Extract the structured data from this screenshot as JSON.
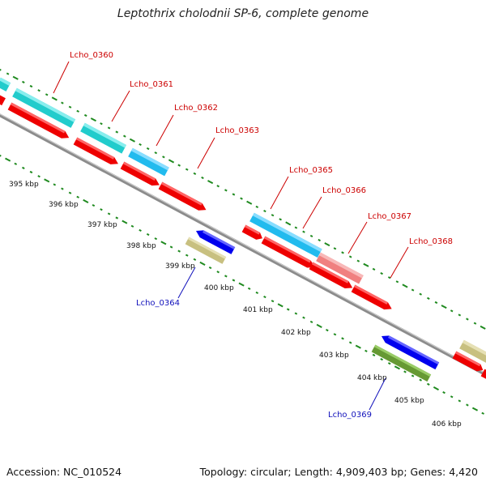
{
  "title": "Leptothrix cholodnii SP-6, complete genome",
  "accession": "Accession: NC_010524",
  "topology": "Topology: circular; Length: 4,909,403 bp; Genes: 4,420",
  "colors": {
    "backbone": "#8c8c8c",
    "tick": "#1f8a1f",
    "label_red": "#cc0000",
    "label_blue": "#1010bb",
    "cyan": "#22cccc",
    "skyblue": "#22bbee",
    "red": "#ee0000",
    "blue": "#0000ee",
    "khaki": "#c8c080",
    "pink": "#f08080",
    "olive": "#669933"
  },
  "kbp_labels": [
    "395 kbp",
    "396 kbp",
    "397 kbp",
    "398 kbp",
    "399 kbp",
    "400 kbp",
    "401 kbp",
    "402 kbp",
    "403 kbp",
    "404 kbp",
    "405 kbp",
    "406 kbp"
  ],
  "gene_labels": [
    {
      "id": "Lcho_0360",
      "color": "red"
    },
    {
      "id": "Lcho_0361",
      "color": "red"
    },
    {
      "id": "Lcho_0362",
      "color": "red"
    },
    {
      "id": "Lcho_0363",
      "color": "red"
    },
    {
      "id": "Lcho_0365",
      "color": "red"
    },
    {
      "id": "Lcho_0366",
      "color": "red"
    },
    {
      "id": "Lcho_0367",
      "color": "red"
    },
    {
      "id": "Lcho_0368",
      "color": "red"
    },
    {
      "id": "Lcho_0364",
      "color": "blue"
    },
    {
      "id": "Lcho_0369",
      "color": "blue"
    }
  ]
}
